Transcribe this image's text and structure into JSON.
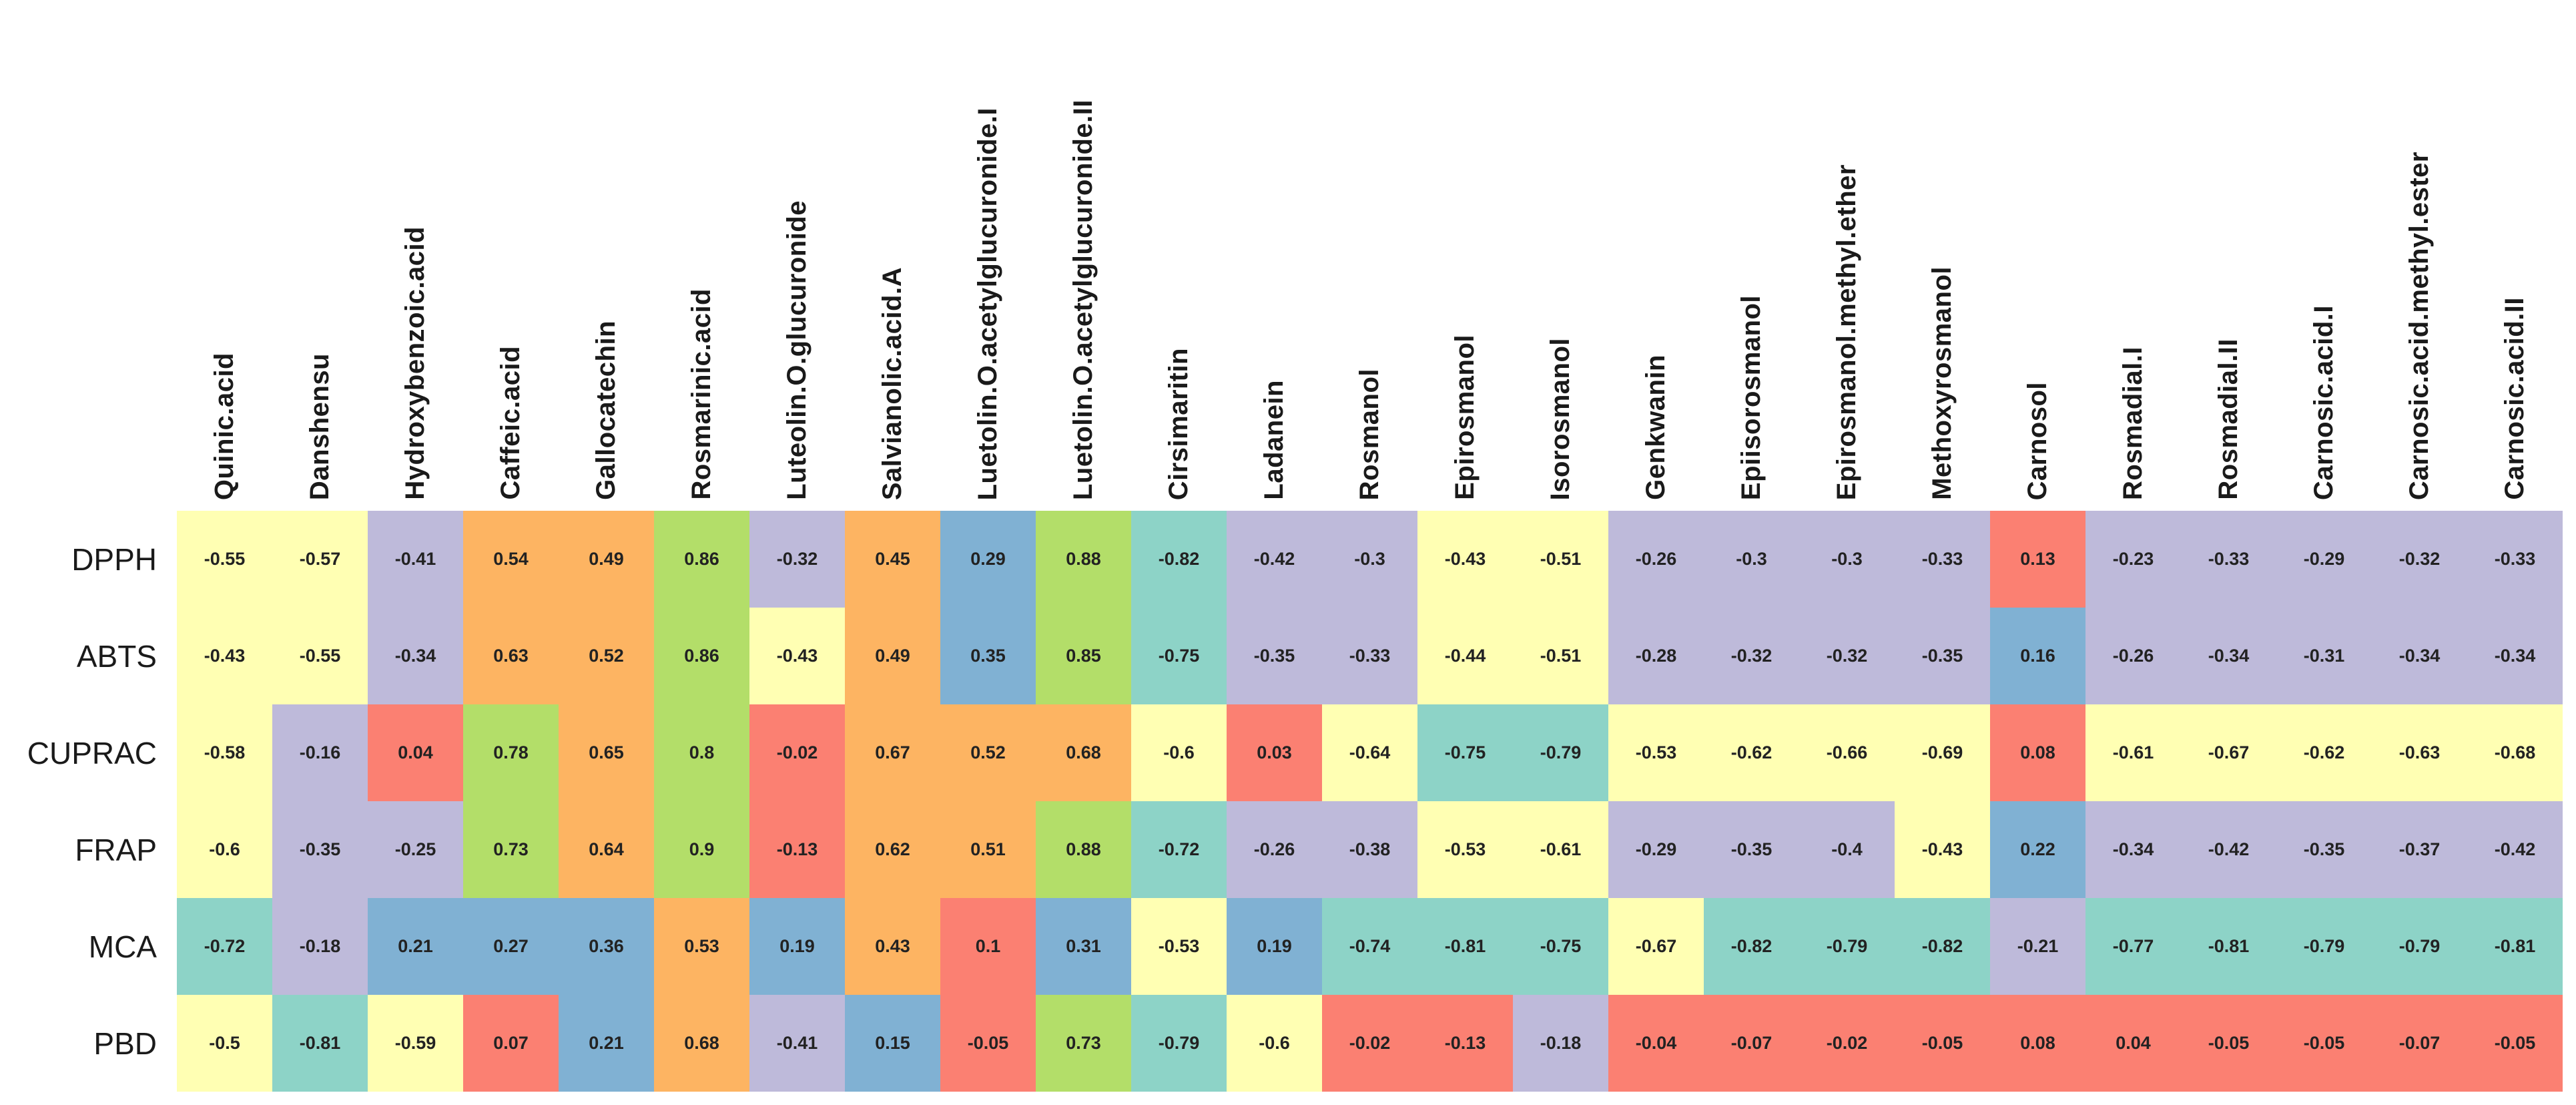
{
  "palette": {
    "teal": "#8DD3C7",
    "yellow": "#FFFFB3",
    "lavender": "#BEBADA",
    "red": "#FB8072",
    "blue": "#80B1D3",
    "orange": "#FDB462",
    "green": "#B3DE69"
  },
  "chart_data": {
    "type": "heatmap",
    "title": "",
    "xlabel": "",
    "ylabel": "",
    "legend": "none",
    "value_range": [
      -1,
      1
    ],
    "columns": [
      "Quinic.acid",
      "Danshensu",
      "Hydroxybenzoic.acid",
      "Caffeic.acid",
      "Gallocatechin",
      "Rosmarinic.acid",
      "Luteolin.O.glucuronide",
      "Salvianolic.acid.A",
      "Luetolin.O.acetylglucuronide.I",
      "Luetolin.O.acetylglucuronide.II",
      "Cirsimaritin",
      "Ladanein",
      "Rosmanol",
      "Epirosmanol",
      "Isorosmanol",
      "Genkwanin",
      "Epiisorosmanol",
      "Epirosmanol.methyl.ether",
      "Methoxyrosmanol",
      "Carnosol",
      "Rosmadial.I",
      "Rosmadial.II",
      "Carnosic.acid.I",
      "Carnosic.acid.methyl.ester",
      "Carnosic.acid.II"
    ],
    "rows": [
      "DPPH",
      "ABTS",
      "CUPRAC",
      "FRAP",
      "MCA",
      "PBD"
    ],
    "series": [
      {
        "name": "DPPH",
        "values": [
          "-0.55",
          "-0.57",
          "-0.41",
          "0.54",
          "0.49",
          "0.86",
          "-0.32",
          "0.45",
          "0.29",
          "0.88",
          "-0.82",
          "-0.42",
          "-0.3",
          "-0.43",
          "-0.51",
          "-0.26",
          "-0.3",
          "-0.3",
          "-0.33",
          "0.13",
          "-0.23",
          "-0.33",
          "-0.29",
          "-0.32",
          "-0.33"
        ],
        "colors": [
          "yellow",
          "yellow",
          "lavender",
          "orange",
          "orange",
          "green",
          "lavender",
          "orange",
          "blue",
          "green",
          "teal",
          "lavender",
          "lavender",
          "yellow",
          "yellow",
          "lavender",
          "lavender",
          "lavender",
          "lavender",
          "red",
          "lavender",
          "lavender",
          "lavender",
          "lavender",
          "lavender"
        ]
      },
      {
        "name": "ABTS",
        "values": [
          "-0.43",
          "-0.55",
          "-0.34",
          "0.63",
          "0.52",
          "0.86",
          "-0.43",
          "0.49",
          "0.35",
          "0.85",
          "-0.75",
          "-0.35",
          "-0.33",
          "-0.44",
          "-0.51",
          "-0.28",
          "-0.32",
          "-0.32",
          "-0.35",
          "0.16",
          "-0.26",
          "-0.34",
          "-0.31",
          "-0.34",
          "-0.34"
        ],
        "colors": [
          "yellow",
          "yellow",
          "lavender",
          "orange",
          "orange",
          "green",
          "yellow",
          "orange",
          "blue",
          "green",
          "teal",
          "lavender",
          "lavender",
          "yellow",
          "yellow",
          "lavender",
          "lavender",
          "lavender",
          "lavender",
          "blue",
          "lavender",
          "lavender",
          "lavender",
          "lavender",
          "lavender"
        ]
      },
      {
        "name": "CUPRAC",
        "values": [
          "-0.58",
          "-0.16",
          "0.04",
          "0.78",
          "0.65",
          "0.8",
          "-0.02",
          "0.67",
          "0.52",
          "0.68",
          "-0.6",
          "0.03",
          "-0.64",
          "-0.75",
          "-0.79",
          "-0.53",
          "-0.62",
          "-0.66",
          "-0.69",
          "0.08",
          "-0.61",
          "-0.67",
          "-0.62",
          "-0.63",
          "-0.68"
        ],
        "colors": [
          "yellow",
          "lavender",
          "red",
          "green",
          "orange",
          "green",
          "red",
          "orange",
          "orange",
          "orange",
          "yellow",
          "red",
          "yellow",
          "teal",
          "teal",
          "yellow",
          "yellow",
          "yellow",
          "yellow",
          "red",
          "yellow",
          "yellow",
          "yellow",
          "yellow",
          "yellow"
        ]
      },
      {
        "name": "FRAP",
        "values": [
          "-0.6",
          "-0.35",
          "-0.25",
          "0.73",
          "0.64",
          "0.9",
          "-0.13",
          "0.62",
          "0.51",
          "0.88",
          "-0.72",
          "-0.26",
          "-0.38",
          "-0.53",
          "-0.61",
          "-0.29",
          "-0.35",
          "-0.4",
          "-0.43",
          "0.22",
          "-0.34",
          "-0.42",
          "-0.35",
          "-0.37",
          "-0.42"
        ],
        "colors": [
          "yellow",
          "lavender",
          "lavender",
          "green",
          "orange",
          "green",
          "red",
          "orange",
          "orange",
          "green",
          "teal",
          "lavender",
          "lavender",
          "yellow",
          "yellow",
          "lavender",
          "lavender",
          "lavender",
          "yellow",
          "blue",
          "lavender",
          "lavender",
          "lavender",
          "lavender",
          "lavender"
        ]
      },
      {
        "name": "MCA",
        "values": [
          "-0.72",
          "-0.18",
          "0.21",
          "0.27",
          "0.36",
          "0.53",
          "0.19",
          "0.43",
          "0.1",
          "0.31",
          "-0.53",
          "0.19",
          "-0.74",
          "-0.81",
          "-0.75",
          "-0.67",
          "-0.82",
          "-0.79",
          "-0.82",
          "-0.21",
          "-0.77",
          "-0.81",
          "-0.79",
          "-0.79",
          "-0.81"
        ],
        "colors": [
          "teal",
          "lavender",
          "blue",
          "blue",
          "blue",
          "orange",
          "blue",
          "orange",
          "red",
          "blue",
          "yellow",
          "blue",
          "teal",
          "teal",
          "teal",
          "yellow",
          "teal",
          "teal",
          "teal",
          "lavender",
          "teal",
          "teal",
          "teal",
          "teal",
          "teal"
        ]
      },
      {
        "name": "PBD",
        "values": [
          "-0.5",
          "-0.81",
          "-0.59",
          "0.07",
          "0.21",
          "0.68",
          "-0.41",
          "0.15",
          "-0.05",
          "0.73",
          "-0.79",
          "-0.6",
          "-0.02",
          "-0.13",
          "-0.18",
          "-0.04",
          "-0.07",
          "-0.02",
          "-0.05",
          "0.08",
          "0.04",
          "-0.05",
          "-0.05",
          "-0.07",
          "-0.05"
        ],
        "colors": [
          "yellow",
          "teal",
          "yellow",
          "red",
          "blue",
          "orange",
          "lavender",
          "blue",
          "red",
          "green",
          "teal",
          "yellow",
          "red",
          "red",
          "lavender",
          "red",
          "red",
          "red",
          "red",
          "red",
          "red",
          "red",
          "red",
          "red",
          "red"
        ]
      }
    ]
  }
}
